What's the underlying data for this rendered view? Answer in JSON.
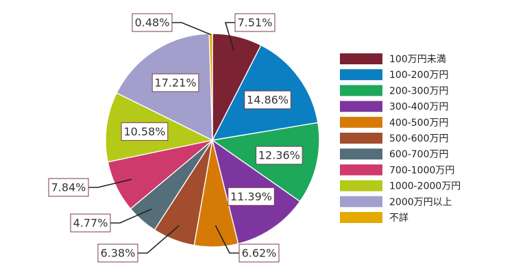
{
  "chart_data": {
    "type": "pie",
    "title": "",
    "legend_position": "right",
    "slices": [
      {
        "label": "100万円未満",
        "value": 7.51,
        "display": "7.51%",
        "color": "#7b2233"
      },
      {
        "label": "100-200万円",
        "value": 14.86,
        "display": "14.86%",
        "color": "#0b7fc1"
      },
      {
        "label": "200-300万円",
        "value": 12.36,
        "display": "12.36%",
        "color": "#1ea85a"
      },
      {
        "label": "300-400万円",
        "value": 11.39,
        "display": "11.39%",
        "color": "#7d36a0"
      },
      {
        "label": "400-500万円",
        "value": 6.62,
        "display": "6.62%",
        "color": "#d67a06"
      },
      {
        "label": "500-600万円",
        "value": 6.38,
        "display": "6.38%",
        "color": "#a24d2e"
      },
      {
        "label": "600-700万円",
        "value": 4.77,
        "display": "4.77%",
        "color": "#546e7a"
      },
      {
        "label": "700-1000万円",
        "value": 7.84,
        "display": "7.84%",
        "color": "#cf3a6c"
      },
      {
        "label": "1000-2000万円",
        "value": 10.58,
        "display": "10.58%",
        "color": "#b5c918"
      },
      {
        "label": "2000万円以上",
        "value": 17.21,
        "display": "17.21%",
        "color": "#a29fcc"
      },
      {
        "label": "不詳",
        "value": 0.48,
        "display": "0.48%",
        "color": "#e5a900"
      }
    ]
  }
}
